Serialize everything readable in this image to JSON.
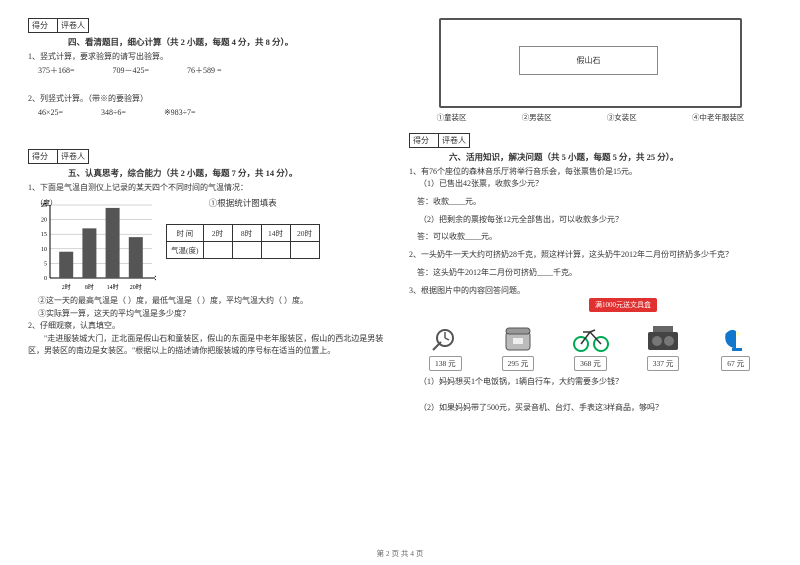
{
  "score": {
    "label1": "得分",
    "label2": "评卷人"
  },
  "sec4": {
    "title": "四、看清题目，细心计算（共 2 小题，每题 4 分，共 8 分）。",
    "q1": "1、竖式计算，要求验算的请写出验算。",
    "q1a": "375＋168=",
    "q1b": "709－425=",
    "q1c": "76＋589 =",
    "q2": "2、列竖式计算。（带※的要验算）",
    "q2a": "46×25=",
    "q2b": "348÷6=",
    "q2c": "※983÷7="
  },
  "sec5": {
    "title": "五、认真思考，综合能力（共 2 小题，每题 7 分，共 14 分）。",
    "q1": "1、下面是气温自测仪上记录的某天四个不同时间的气温情况：",
    "chart_title": "①根据统计图填表",
    "y_label": "（度）",
    "y_ticks": [
      "25",
      "20",
      "15",
      "10",
      "5",
      "0"
    ],
    "x_ticks": [
      "2时",
      "8时",
      "14时",
      "20时"
    ],
    "bar_values": [
      9,
      17,
      24,
      14
    ],
    "bar_color": "#555555",
    "table_header": [
      "时  间",
      "2时",
      "8时",
      "14时",
      "20时"
    ],
    "table_row_label": "气温(度)",
    "q1b": "②这一天的最高气温是（      ）度，最低气温是（      ）度，平均气温大约（      ）度。",
    "q1c": "③实际算一算，这天的平均气温是多少度？",
    "q2": "2、仔细观察，认真填空。",
    "q2_text": "　　\"走进服装城大门，正北面是假山石和童装区，假山的东面是中老年服装区，假山的西北边是男装区，男装区的南边是女装区。\"根据以上的描述请你把服装城的序号标在适当的位置上。",
    "map_label": "假山石",
    "map_items": [
      "①童装区",
      "②男装区",
      "③女装区",
      "④中老年服装区"
    ]
  },
  "sec6": {
    "title": "六、活用知识，解决问题（共 5 小题，每题 5 分，共 25 分）。",
    "q1": "1、有76个座位的森林音乐厅将举行音乐会，每张票售价是15元。",
    "q1a": "（1）已售出42张票，收款多少元？",
    "ans1": "答：收款____元。",
    "q1b": "（2）把剩余的票按每张12元全部售出，可以收款多少元？",
    "ans2": "答：可以收款____元。",
    "q2": "2、一头奶牛一天大约可挤奶28千克，照这样计算，这头奶牛2012年二月份可挤奶多少千克？",
    "ans3": "答：这头奶牛2012年二月份可挤奶____千克。",
    "q3": "3、根据图片中的内容回答问题。",
    "promo": "满1000元送文具盒",
    "items": [
      {
        "name": "watch",
        "price": "138 元"
      },
      {
        "name": "cooker",
        "price": "295 元"
      },
      {
        "name": "bike",
        "price": "368 元"
      },
      {
        "name": "radio",
        "price": "337 元"
      },
      {
        "name": "lamp",
        "price": "67 元"
      }
    ],
    "q3a": "（1）妈妈想买1个电饭锅，1辆自行车，大约需要多少钱？",
    "q3b": "（2）如果妈妈带了500元，买录音机、台灯、手表这3样商品，够吗？"
  },
  "footer": "第 2 页 共 4 页"
}
